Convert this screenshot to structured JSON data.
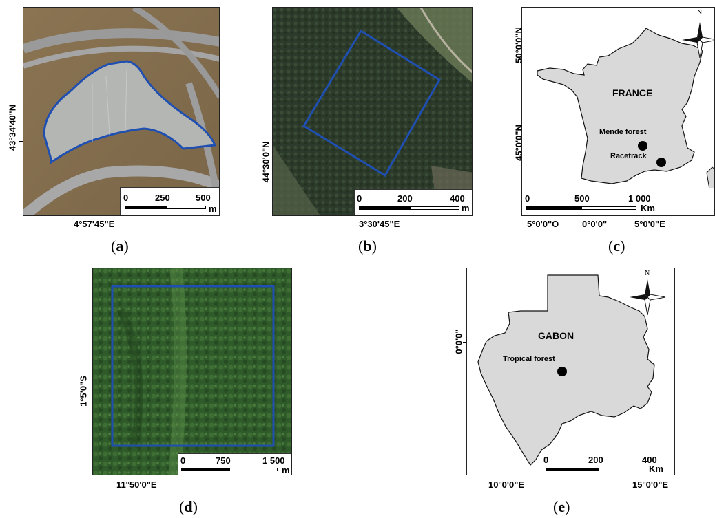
{
  "panels": {
    "a": {
      "caption_letter": "a",
      "lat_label": "43°34'40\"N",
      "lon_label": "4°57'45\"E",
      "scale": {
        "ticks": [
          "0",
          "250",
          "500"
        ],
        "unit": "m"
      }
    },
    "b": {
      "caption_letter": "b",
      "lat_label": "44°30'0\"N",
      "lon_label": "3°30'45\"E",
      "scale": {
        "ticks": [
          "0",
          "200",
          "400"
        ],
        "unit": "m"
      }
    },
    "c": {
      "caption_letter": "c",
      "country": "FRANCE",
      "sites": [
        "Mende forest",
        "Racetrack"
      ],
      "lat_labels": [
        "50°0'0\"N",
        "45°0'0\"N"
      ],
      "lon_labels": [
        "5°0'0\"O",
        "0°0'0\"",
        "5°0'0\"E"
      ],
      "scale": {
        "ticks": [
          "0",
          "500",
          "1 000"
        ],
        "unit": "Km"
      },
      "north": "N"
    },
    "d": {
      "caption_letter": "d",
      "lat_label": "1°5'0\"S",
      "lon_label": "11°50'0\"E",
      "scale": {
        "ticks": [
          "0",
          "750",
          "1 500"
        ],
        "unit": "m"
      }
    },
    "e": {
      "caption_letter": "e",
      "country": "GABON",
      "site": "Tropical forest",
      "lat_label": "0°0'0\"",
      "lon_labels": [
        "10°0'0\"E",
        "15°0'0\"E"
      ],
      "scale": {
        "ticks": [
          "0",
          "200",
          "400"
        ],
        "unit": "Km"
      },
      "north": "N"
    }
  },
  "colors": {
    "outline": "#1f4fb0",
    "land": "#d9d9d9",
    "forest_dark": "#2b3a2a",
    "forest_green": "#2f5a2a"
  }
}
